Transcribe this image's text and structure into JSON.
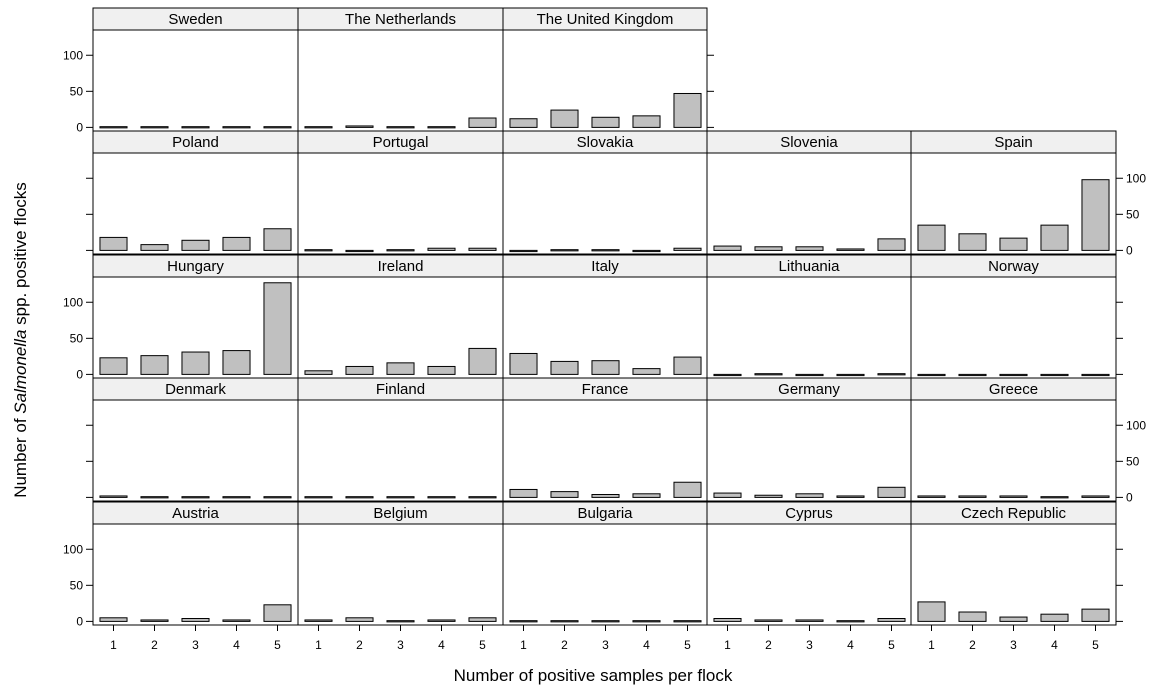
{
  "chart_data": {
    "type": "bar",
    "xlabel": "Number of positive samples per flock",
    "ylabel": {
      "prefix": "Number of ",
      "italic": "Salmonella",
      "suffix": " spp. positive flocks"
    },
    "categories": [
      "1",
      "2",
      "3",
      "4",
      "5"
    ],
    "ylim": [
      -5,
      135
    ],
    "yticks": [
      "0",
      "50",
      "100"
    ],
    "grid": false,
    "colors": {
      "bar": "#c0c0c0",
      "strip": "#f0f0f0"
    },
    "panels": [
      {
        "name": "Austria",
        "values": [
          5,
          2,
          4,
          2,
          23
        ]
      },
      {
        "name": "Belgium",
        "values": [
          2,
          5,
          1,
          2,
          5
        ]
      },
      {
        "name": "Bulgaria",
        "values": [
          1,
          1,
          1,
          1,
          1
        ]
      },
      {
        "name": "Cyprus",
        "values": [
          4,
          2,
          2,
          1,
          4
        ]
      },
      {
        "name": "Czech Republic",
        "values": [
          27,
          13,
          6,
          10,
          17
        ]
      },
      {
        "name": "Denmark",
        "values": [
          2,
          1,
          1,
          1,
          1
        ]
      },
      {
        "name": "Finland",
        "values": [
          1,
          1,
          1,
          1,
          1
        ]
      },
      {
        "name": "France",
        "values": [
          11,
          8,
          4,
          5,
          21
        ]
      },
      {
        "name": "Germany",
        "values": [
          6,
          3,
          5,
          2,
          14
        ]
      },
      {
        "name": "Greece",
        "values": [
          2,
          2,
          2,
          1,
          2
        ]
      },
      {
        "name": "Hungary",
        "values": [
          23,
          26,
          31,
          33,
          127
        ]
      },
      {
        "name": "Ireland",
        "values": [
          5,
          11,
          16,
          11,
          36
        ]
      },
      {
        "name": "Italy",
        "values": [
          29,
          18,
          19,
          8,
          24
        ]
      },
      {
        "name": "Lithuania",
        "values": [
          0,
          1,
          0,
          0,
          1
        ]
      },
      {
        "name": "Norway",
        "values": [
          0,
          0,
          0,
          0,
          0
        ]
      },
      {
        "name": "Poland",
        "values": [
          18,
          8,
          14,
          18,
          30
        ]
      },
      {
        "name": "Portugal",
        "values": [
          1,
          0,
          1,
          3,
          3
        ]
      },
      {
        "name": "Slovakia",
        "values": [
          0,
          1,
          1,
          0,
          3
        ]
      },
      {
        "name": "Slovenia",
        "values": [
          6,
          5,
          5,
          2,
          16
        ]
      },
      {
        "name": "Spain",
        "values": [
          35,
          23,
          17,
          35,
          98
        ]
      },
      {
        "name": "Sweden",
        "values": [
          1,
          1,
          1,
          1,
          1
        ]
      },
      {
        "name": "The Netherlands",
        "values": [
          1,
          2,
          1,
          1,
          13
        ]
      },
      {
        "name": "The United Kingdom",
        "values": [
          12,
          24,
          14,
          16,
          47
        ]
      }
    ]
  }
}
